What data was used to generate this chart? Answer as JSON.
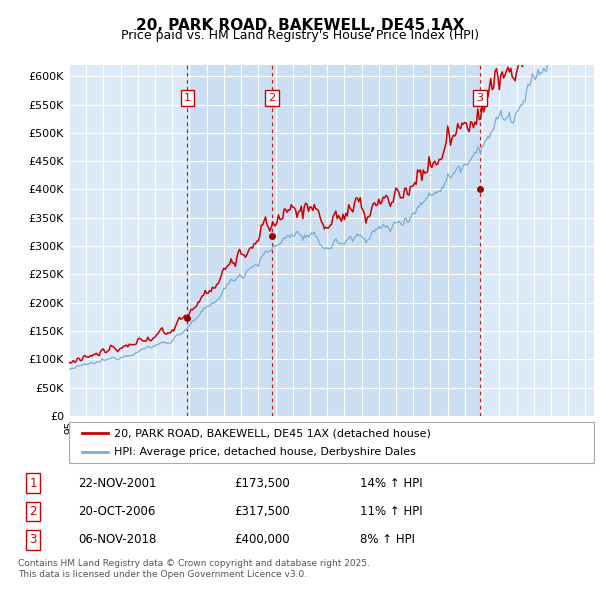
{
  "title": "20, PARK ROAD, BAKEWELL, DE45 1AX",
  "subtitle": "Price paid vs. HM Land Registry's House Price Index (HPI)",
  "legend_line1": "20, PARK ROAD, BAKEWELL, DE45 1AX (detached house)",
  "legend_line2": "HPI: Average price, detached house, Derbyshire Dales",
  "table_rows": [
    [
      "1",
      "22-NOV-2001",
      "£173,500",
      "14% ↑ HPI"
    ],
    [
      "2",
      "20-OCT-2006",
      "£317,500",
      "11% ↑ HPI"
    ],
    [
      "3",
      "06-NOV-2018",
      "£400,000",
      "8% ↑ HPI"
    ]
  ],
  "sale_prices": [
    173500,
    317500,
    400000
  ],
  "sale_years": [
    2001.875,
    2006.792,
    2018.875
  ],
  "footnote": "Contains HM Land Registry data © Crown copyright and database right 2025.\nThis data is licensed under the Open Government Licence v3.0.",
  "hpi_color": "#7aadd4",
  "price_color": "#cc0000",
  "vline_color": "#cc0000",
  "bg_chart_color": "#dce9f7",
  "grid_color": "#ffffff",
  "fig_color": "#ffffff",
  "ylim": [
    0,
    620000
  ],
  "yticks": [
    0,
    50000,
    100000,
    150000,
    200000,
    250000,
    300000,
    350000,
    400000,
    450000,
    500000,
    550000,
    600000
  ],
  "xlim_start": 1995.0,
  "xlim_end": 2025.5
}
